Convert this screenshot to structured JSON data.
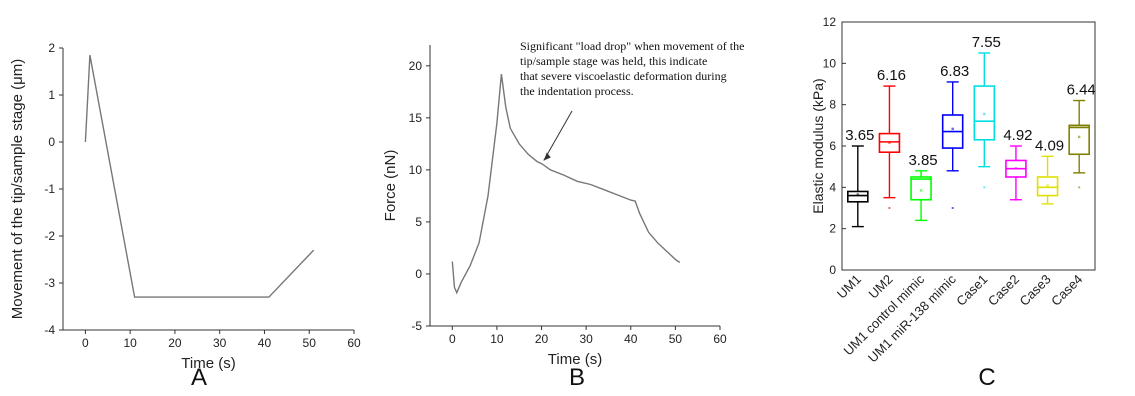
{
  "chart_data": [
    {
      "panel": "A",
      "type": "line",
      "xlabel": "Time (s)",
      "ylabel": "Movement of the tip/sample stage (μm)",
      "xlim": [
        -5,
        60
      ],
      "ylim": [
        -4,
        2
      ],
      "xticks": [
        0,
        10,
        20,
        30,
        40,
        50,
        60
      ],
      "yticks": [
        -4,
        -3,
        -2,
        -1,
        0,
        1,
        2
      ],
      "series": [
        {
          "x": [
            0,
            1,
            11,
            41,
            51
          ],
          "y": [
            0,
            1.85,
            -3.3,
            -3.3,
            -2.3
          ]
        }
      ]
    },
    {
      "panel": "B",
      "type": "line",
      "xlabel": "Time (s)",
      "ylabel": "Force (nN)",
      "xlim": [
        -5,
        60
      ],
      "ylim": [
        -5,
        22
      ],
      "xticks": [
        0,
        10,
        20,
        30,
        40,
        50,
        60
      ],
      "yticks": [
        -5,
        0,
        5,
        10,
        15,
        20
      ],
      "annotation": "Significant \"load drop\" when movement of the tip/sample stage was held, this indicate that severe viscoelastic deformation during the indentation process.",
      "series": [
        {
          "x": [
            0,
            0.5,
            1,
            2,
            4,
            6,
            8,
            10,
            11,
            12,
            13,
            15,
            17,
            19,
            20,
            22,
            25,
            28,
            31,
            34,
            37,
            40,
            41,
            42,
            44,
            46,
            48,
            50,
            51
          ],
          "y": [
            1.2,
            -1.3,
            -1.8,
            -0.8,
            0.8,
            3,
            7.5,
            14.5,
            19.2,
            16,
            14,
            12.5,
            11.5,
            10.8,
            10.6,
            10,
            9.5,
            8.9,
            8.6,
            8.1,
            7.6,
            7.1,
            7,
            5.8,
            4,
            3,
            2.2,
            1.4,
            1.1
          ]
        }
      ]
    },
    {
      "panel": "C",
      "type": "box",
      "ylabel": "Elastic modulus (kPa)",
      "ylim": [
        0,
        12
      ],
      "yticks": [
        0,
        2,
        4,
        6,
        8,
        10,
        12
      ],
      "categories": [
        "UM1",
        "UM2",
        "UM1 control mimic",
        "UM1 miR-138 mimic",
        "Case1",
        "Case2",
        "Case3",
        "Case4"
      ],
      "boxes": [
        {
          "label": "UM1",
          "mean_label": "3.65",
          "min": 2.1,
          "q1": 3.3,
          "median": 3.6,
          "q3": 3.8,
          "max": 6.0,
          "mean": 3.65,
          "outliers": [],
          "color": "#000000"
        },
        {
          "label": "UM2",
          "mean_label": "6.16",
          "min": 3.5,
          "q1": 5.7,
          "median": 6.2,
          "q3": 6.6,
          "max": 8.9,
          "mean": 6.16,
          "outliers": [
            3.0
          ],
          "color": "#ff0000"
        },
        {
          "label": "UM1 control mimic",
          "mean_label": "3.85",
          "min": 2.4,
          "q1": 3.4,
          "median": 4.4,
          "q3": 4.5,
          "max": 4.8,
          "mean": 3.85,
          "outliers": [],
          "color": "#00ff00"
        },
        {
          "label": "UM1 miR-138 mimic",
          "mean_label": "6.83",
          "min": 4.8,
          "q1": 5.9,
          "median": 6.7,
          "q3": 7.5,
          "max": 9.1,
          "mean": 6.83,
          "outliers": [
            3.0
          ],
          "color": "#0000ff"
        },
        {
          "label": "Case1",
          "mean_label": "7.55",
          "min": 5.0,
          "q1": 6.3,
          "median": 7.2,
          "q3": 8.9,
          "max": 10.5,
          "mean": 7.55,
          "outliers": [
            4.0
          ],
          "color": "#00e0e0"
        },
        {
          "label": "Case2",
          "mean_label": "4.92",
          "min": 3.4,
          "q1": 4.5,
          "median": 4.9,
          "q3": 5.3,
          "max": 6.0,
          "mean": 4.92,
          "outliers": [
            3.4
          ],
          "color": "#ff00ff"
        },
        {
          "label": "Case3",
          "mean_label": "4.09",
          "min": 3.2,
          "q1": 3.6,
          "median": 4.0,
          "q3": 4.5,
          "max": 5.5,
          "mean": 4.09,
          "outliers": [],
          "color": "#e0e000"
        },
        {
          "label": "Case4",
          "mean_label": "6.44",
          "min": 4.7,
          "q1": 5.6,
          "median": 6.9,
          "q3": 7.0,
          "max": 8.2,
          "mean": 6.44,
          "outliers": [
            4.0
          ],
          "color": "#808000"
        }
      ]
    }
  ]
}
